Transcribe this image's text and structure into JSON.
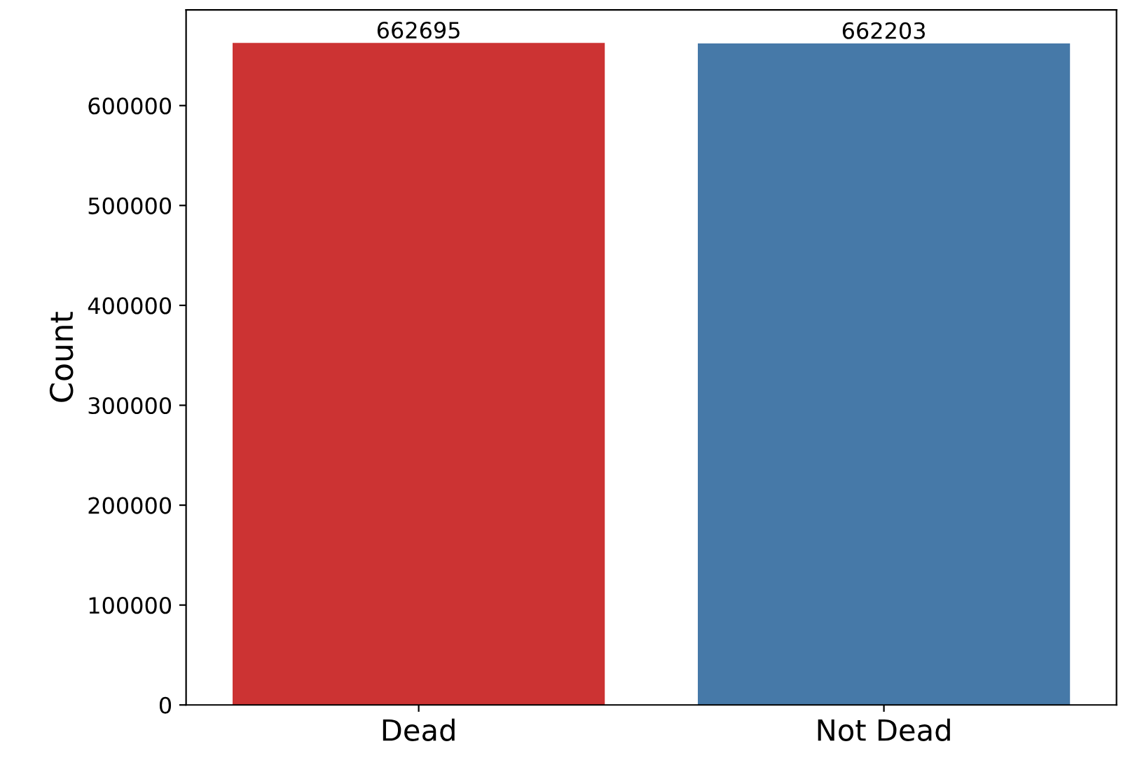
{
  "chart_data": {
    "type": "bar",
    "ylabel": "Count",
    "categories": [
      "Dead",
      "Not Dead"
    ],
    "values": [
      662695,
      662203
    ],
    "colors": [
      "#cc3333",
      "#4679a8"
    ],
    "ylim": [
      0,
      695830
    ],
    "yticks": [
      0,
      100000,
      200000,
      300000,
      400000,
      500000,
      600000
    ],
    "data_labels": true,
    "grid": false,
    "legend": false
  }
}
